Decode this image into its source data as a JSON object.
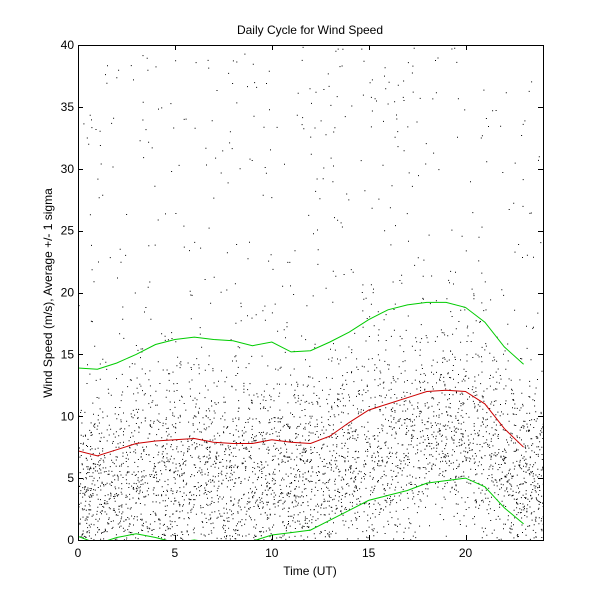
{
  "chart_data": {
    "type": "scatter",
    "title": "Daily Cycle for Wind Speed",
    "xlabel": "Time (UT)",
    "ylabel": "Wind Speed (m/s), Average +/- 1 sigma",
    "xlim": [
      0,
      24
    ],
    "ylim": [
      0,
      40
    ],
    "xticks": [
      0,
      5,
      10,
      15,
      20
    ],
    "yticks": [
      0,
      5,
      10,
      15,
      20,
      25,
      30,
      35,
      40
    ],
    "grid": false,
    "scatter_color": "#000000",
    "series": [
      {
        "color": "#cc0000",
        "x": [
          0,
          1,
          2,
          3,
          4,
          5,
          6,
          7,
          8,
          9,
          10,
          11,
          12,
          13,
          14,
          15,
          16,
          17,
          18,
          19,
          20,
          21,
          22,
          23
        ],
        "values": [
          7.2,
          6.8,
          7.3,
          7.8,
          8.0,
          8.1,
          8.2,
          7.9,
          7.8,
          7.8,
          8.1,
          7.9,
          7.8,
          8.4,
          9.5,
          10.5,
          11.0,
          11.5,
          12.0,
          12.1,
          12.0,
          11.0,
          9.0,
          7.5
        ]
      },
      {
        "color": "#00cc00",
        "x": [
          0,
          1,
          2,
          3,
          4,
          5,
          6,
          7,
          8,
          9,
          10,
          11,
          12,
          13,
          14,
          15,
          16,
          17,
          18,
          19,
          20,
          21,
          22,
          23
        ],
        "values": [
          13.9,
          13.8,
          14.3,
          15.0,
          15.8,
          16.2,
          16.4,
          16.2,
          16.1,
          15.7,
          16.0,
          15.2,
          15.3,
          16.0,
          16.8,
          17.8,
          18.6,
          19.0,
          19.2,
          19.2,
          18.8,
          17.6,
          15.6,
          14.2
        ]
      },
      {
        "color": "#00cc00",
        "x": [
          0,
          1,
          2,
          3,
          4,
          5,
          6,
          7,
          8,
          9,
          10,
          11,
          12,
          13,
          14,
          15,
          16,
          17,
          18,
          19,
          20,
          21,
          22,
          23
        ],
        "values": [
          0.3,
          -0.3,
          0.2,
          0.5,
          0.2,
          -0.2,
          0.0,
          -0.2,
          -0.3,
          -0.1,
          0.4,
          0.6,
          0.8,
          1.6,
          2.4,
          3.2,
          3.6,
          4.0,
          4.6,
          4.8,
          5.0,
          4.3,
          2.6,
          1.3
        ]
      }
    ]
  }
}
